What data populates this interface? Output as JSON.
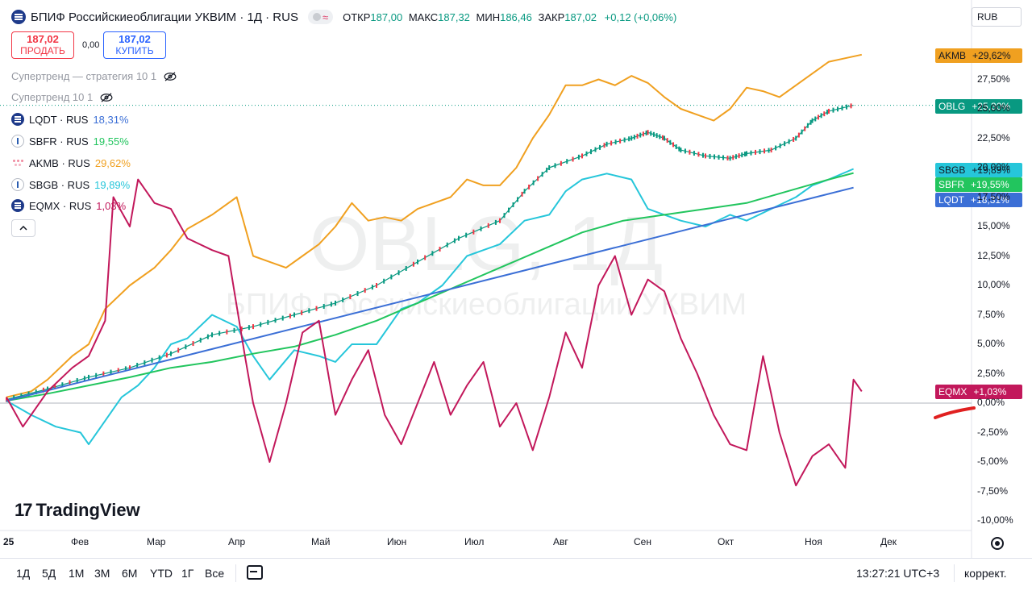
{
  "header": {
    "title": "БПИФ Российскиеоблигации УКВИМ · 1Д · RUS",
    "open_label": "ОТКР",
    "open": "187,00",
    "high_label": "МАКС",
    "high": "187,32",
    "low_label": "МИН",
    "low": "186,46",
    "close_label": "ЗАКР",
    "close": "187,02",
    "change": "+0,12 (+0,06%)",
    "currency": "RUB"
  },
  "trade": {
    "sell_price": "187,02",
    "sell_label": "ПРОДАТЬ",
    "spread": "0,00",
    "buy_price": "187,02",
    "buy_label": "КУПИТЬ"
  },
  "indicators": [
    "Супертренд — стратегия 10 1",
    "Супертренд 10 1"
  ],
  "legend": [
    {
      "symbol": "LQDT · RUS",
      "value": "18,31%",
      "color": "#3b6fd6",
      "icon": "stack-icon"
    },
    {
      "symbol": "SBFR · RUS",
      "value": "19,55%",
      "color": "#22c55e",
      "icon": "ring-icon"
    },
    {
      "symbol": "AKMB · RUS",
      "value": "29,62%",
      "color": "#f0a020",
      "icon": "dots-icon"
    },
    {
      "symbol": "SBGB · RUS",
      "value": "19,89%",
      "color": "#26c6da",
      "icon": "ring-icon"
    },
    {
      "symbol": "EQMX · RUS",
      "value": "1,03%",
      "color": "#c2185b",
      "icon": "stack-icon"
    }
  ],
  "watermark": {
    "main": "OBLG, 1Д",
    "sub": "БПИФ Российскиеоблигации УКВИМ"
  },
  "brand": "TradingView",
  "chart_data": {
    "type": "line",
    "y_unit": "%",
    "ylim": [
      -11,
      30
    ],
    "y_ticks": [
      "27,50%",
      "25,00%",
      "22,50%",
      "20,00%",
      "17,50%",
      "15,00%",
      "12,50%",
      "10,00%",
      "7,50%",
      "5,00%",
      "2,50%",
      "0,00%",
      "-2,50%",
      "-5,00%",
      "-7,50%",
      "-10,00%"
    ],
    "x_ticks": [
      "25",
      "Фев",
      "Мар",
      "Апр",
      "Май",
      "Июн",
      "Июл",
      "Авг",
      "Сен",
      "Окт",
      "Ноя",
      "Дек"
    ],
    "series": [
      {
        "name": "AKMB",
        "color": "#f0a020",
        "last": "+29,62%",
        "values": [
          [
            0,
            0.5
          ],
          [
            0.3,
            1.0
          ],
          [
            0.5,
            2.0
          ],
          [
            0.8,
            4.0
          ],
          [
            1.0,
            5.0
          ],
          [
            1.2,
            8.0
          ],
          [
            1.5,
            10.0
          ],
          [
            1.8,
            11.5
          ],
          [
            2.0,
            13.0
          ],
          [
            2.2,
            14.8
          ],
          [
            2.5,
            16.0
          ],
          [
            2.8,
            17.5
          ],
          [
            3.0,
            12.5
          ],
          [
            3.2,
            12.0
          ],
          [
            3.4,
            11.5
          ],
          [
            3.6,
            12.5
          ],
          [
            3.8,
            13.5
          ],
          [
            4.0,
            15.0
          ],
          [
            4.2,
            17.0
          ],
          [
            4.4,
            15.5
          ],
          [
            4.6,
            15.8
          ],
          [
            4.8,
            15.5
          ],
          [
            5.0,
            16.5
          ],
          [
            5.2,
            17.0
          ],
          [
            5.4,
            17.5
          ],
          [
            5.6,
            19.0
          ],
          [
            5.8,
            18.5
          ],
          [
            6.0,
            18.5
          ],
          [
            6.2,
            20.0
          ],
          [
            6.4,
            22.5
          ],
          [
            6.6,
            24.5
          ],
          [
            6.8,
            27.0
          ],
          [
            7.0,
            27.0
          ],
          [
            7.2,
            27.5
          ],
          [
            7.4,
            27.0
          ],
          [
            7.6,
            27.8
          ],
          [
            7.8,
            27.2
          ],
          [
            8.0,
            26.0
          ],
          [
            8.2,
            25.0
          ],
          [
            8.4,
            24.5
          ],
          [
            8.6,
            24.0
          ],
          [
            8.8,
            25.0
          ],
          [
            9.0,
            26.8
          ],
          [
            9.2,
            26.5
          ],
          [
            9.4,
            26.0
          ],
          [
            9.6,
            27.0
          ],
          [
            9.8,
            28.0
          ],
          [
            10.0,
            29.0
          ],
          [
            10.2,
            29.3
          ],
          [
            10.4,
            29.6
          ]
        ]
      },
      {
        "name": "OBLG",
        "color": "#089981",
        "last": "+25,30%",
        "values": [
          [
            0,
            0.3
          ],
          [
            0.5,
            1.2
          ],
          [
            1.0,
            2.2
          ],
          [
            1.5,
            3.0
          ],
          [
            2.0,
            4.2
          ],
          [
            2.5,
            5.8
          ],
          [
            3.0,
            6.5
          ],
          [
            3.5,
            7.5
          ],
          [
            4.0,
            8.5
          ],
          [
            4.5,
            10.0
          ],
          [
            5.0,
            12.0
          ],
          [
            5.5,
            14.0
          ],
          [
            6.0,
            15.5
          ],
          [
            6.3,
            18.0
          ],
          [
            6.6,
            20.0
          ],
          [
            7.0,
            21.0
          ],
          [
            7.3,
            22.0
          ],
          [
            7.6,
            22.5
          ],
          [
            7.8,
            23.0
          ],
          [
            8.0,
            22.5
          ],
          [
            8.2,
            21.5
          ],
          [
            8.5,
            21.0
          ],
          [
            8.8,
            20.8
          ],
          [
            9.0,
            21.2
          ],
          [
            9.3,
            21.5
          ],
          [
            9.6,
            22.5
          ],
          [
            9.8,
            24.0
          ],
          [
            10.0,
            24.8
          ],
          [
            10.3,
            25.3
          ]
        ]
      },
      {
        "name": "SBGB",
        "color": "#26c6da",
        "last": "+19,89%",
        "values": [
          [
            0,
            0.2
          ],
          [
            0.3,
            -1.0
          ],
          [
            0.6,
            -2.0
          ],
          [
            0.9,
            -2.5
          ],
          [
            1.0,
            -3.5
          ],
          [
            1.2,
            -1.5
          ],
          [
            1.4,
            0.5
          ],
          [
            1.6,
            1.5
          ],
          [
            1.8,
            3.0
          ],
          [
            2.0,
            5.0
          ],
          [
            2.2,
            5.5
          ],
          [
            2.5,
            7.5
          ],
          [
            2.8,
            6.5
          ],
          [
            3.0,
            4.0
          ],
          [
            3.2,
            2.0
          ],
          [
            3.5,
            4.5
          ],
          [
            3.8,
            4.0
          ],
          [
            4.0,
            3.5
          ],
          [
            4.2,
            5.0
          ],
          [
            4.5,
            5.0
          ],
          [
            4.8,
            8.0
          ],
          [
            5.0,
            8.5
          ],
          [
            5.3,
            10.0
          ],
          [
            5.6,
            12.5
          ],
          [
            5.8,
            13.0
          ],
          [
            6.0,
            13.5
          ],
          [
            6.3,
            15.5
          ],
          [
            6.6,
            16.0
          ],
          [
            6.8,
            18.0
          ],
          [
            7.0,
            19.0
          ],
          [
            7.3,
            19.5
          ],
          [
            7.6,
            19.0
          ],
          [
            7.8,
            16.5
          ],
          [
            8.0,
            16.0
          ],
          [
            8.2,
            15.5
          ],
          [
            8.5,
            15.0
          ],
          [
            8.8,
            16.0
          ],
          [
            9.0,
            15.5
          ],
          [
            9.3,
            16.5
          ],
          [
            9.6,
            17.5
          ],
          [
            9.8,
            18.5
          ],
          [
            10.0,
            19.0
          ],
          [
            10.3,
            19.9
          ]
        ]
      },
      {
        "name": "SBFR",
        "color": "#22c55e",
        "last": "+19,55%",
        "values": [
          [
            0,
            0.2
          ],
          [
            0.5,
            0.8
          ],
          [
            1.0,
            1.5
          ],
          [
            1.5,
            2.2
          ],
          [
            2.0,
            3.0
          ],
          [
            2.5,
            3.5
          ],
          [
            3.0,
            4.2
          ],
          [
            3.5,
            4.8
          ],
          [
            4.0,
            5.8
          ],
          [
            4.5,
            7.0
          ],
          [
            5.0,
            8.5
          ],
          [
            5.5,
            10.0
          ],
          [
            6.0,
            11.5
          ],
          [
            6.5,
            13.0
          ],
          [
            7.0,
            14.5
          ],
          [
            7.5,
            15.5
          ],
          [
            8.0,
            16.0
          ],
          [
            8.5,
            16.5
          ],
          [
            9.0,
            17.0
          ],
          [
            9.5,
            18.0
          ],
          [
            10.0,
            19.0
          ],
          [
            10.3,
            19.55
          ]
        ]
      },
      {
        "name": "LQDT",
        "color": "#3b6fd6",
        "last": "+18,31%",
        "values": [
          [
            0,
            0.2
          ],
          [
            10.3,
            18.31
          ]
        ]
      },
      {
        "name": "EQMX",
        "color": "#c2185b",
        "last": "+1,03%",
        "values": [
          [
            0,
            0.5
          ],
          [
            0.2,
            -2.0
          ],
          [
            0.5,
            1.0
          ],
          [
            0.8,
            3.0
          ],
          [
            1.0,
            4.0
          ],
          [
            1.2,
            7.0
          ],
          [
            1.3,
            17.5
          ],
          [
            1.5,
            15.0
          ],
          [
            1.6,
            19.0
          ],
          [
            1.8,
            17.0
          ],
          [
            2.0,
            16.5
          ],
          [
            2.2,
            14.0
          ],
          [
            2.5,
            13.0
          ],
          [
            2.7,
            12.5
          ],
          [
            2.9,
            4.0
          ],
          [
            3.0,
            0.0
          ],
          [
            3.2,
            -5.0
          ],
          [
            3.4,
            0.0
          ],
          [
            3.6,
            6.0
          ],
          [
            3.8,
            7.0
          ],
          [
            4.0,
            -1.0
          ],
          [
            4.2,
            2.0
          ],
          [
            4.4,
            4.5
          ],
          [
            4.6,
            -1.0
          ],
          [
            4.8,
            -3.5
          ],
          [
            5.0,
            0.0
          ],
          [
            5.2,
            3.5
          ],
          [
            5.4,
            -1.0
          ],
          [
            5.6,
            1.5
          ],
          [
            5.8,
            3.5
          ],
          [
            6.0,
            -2.0
          ],
          [
            6.2,
            0.0
          ],
          [
            6.4,
            -4.0
          ],
          [
            6.6,
            0.5
          ],
          [
            6.8,
            6.0
          ],
          [
            7.0,
            3.0
          ],
          [
            7.2,
            10.0
          ],
          [
            7.4,
            12.5
          ],
          [
            7.6,
            7.5
          ],
          [
            7.8,
            10.5
          ],
          [
            8.0,
            9.5
          ],
          [
            8.2,
            5.5
          ],
          [
            8.4,
            2.5
          ],
          [
            8.6,
            -1.0
          ],
          [
            8.8,
            -3.5
          ],
          [
            9.0,
            -4.0
          ],
          [
            9.2,
            4.0
          ],
          [
            9.4,
            -2.5
          ],
          [
            9.6,
            -7.0
          ],
          [
            9.8,
            -4.5
          ],
          [
            10.0,
            -3.5
          ],
          [
            10.2,
            -5.5
          ],
          [
            10.3,
            2.0
          ],
          [
            10.4,
            1.0
          ]
        ]
      }
    ]
  },
  "timeframes": [
    "1Д",
    "5Д",
    "1М",
    "3М",
    "6М",
    "YTD",
    "1Г",
    "Все"
  ],
  "clock": "13:27:21 UTC+3",
  "correction": "коррект."
}
